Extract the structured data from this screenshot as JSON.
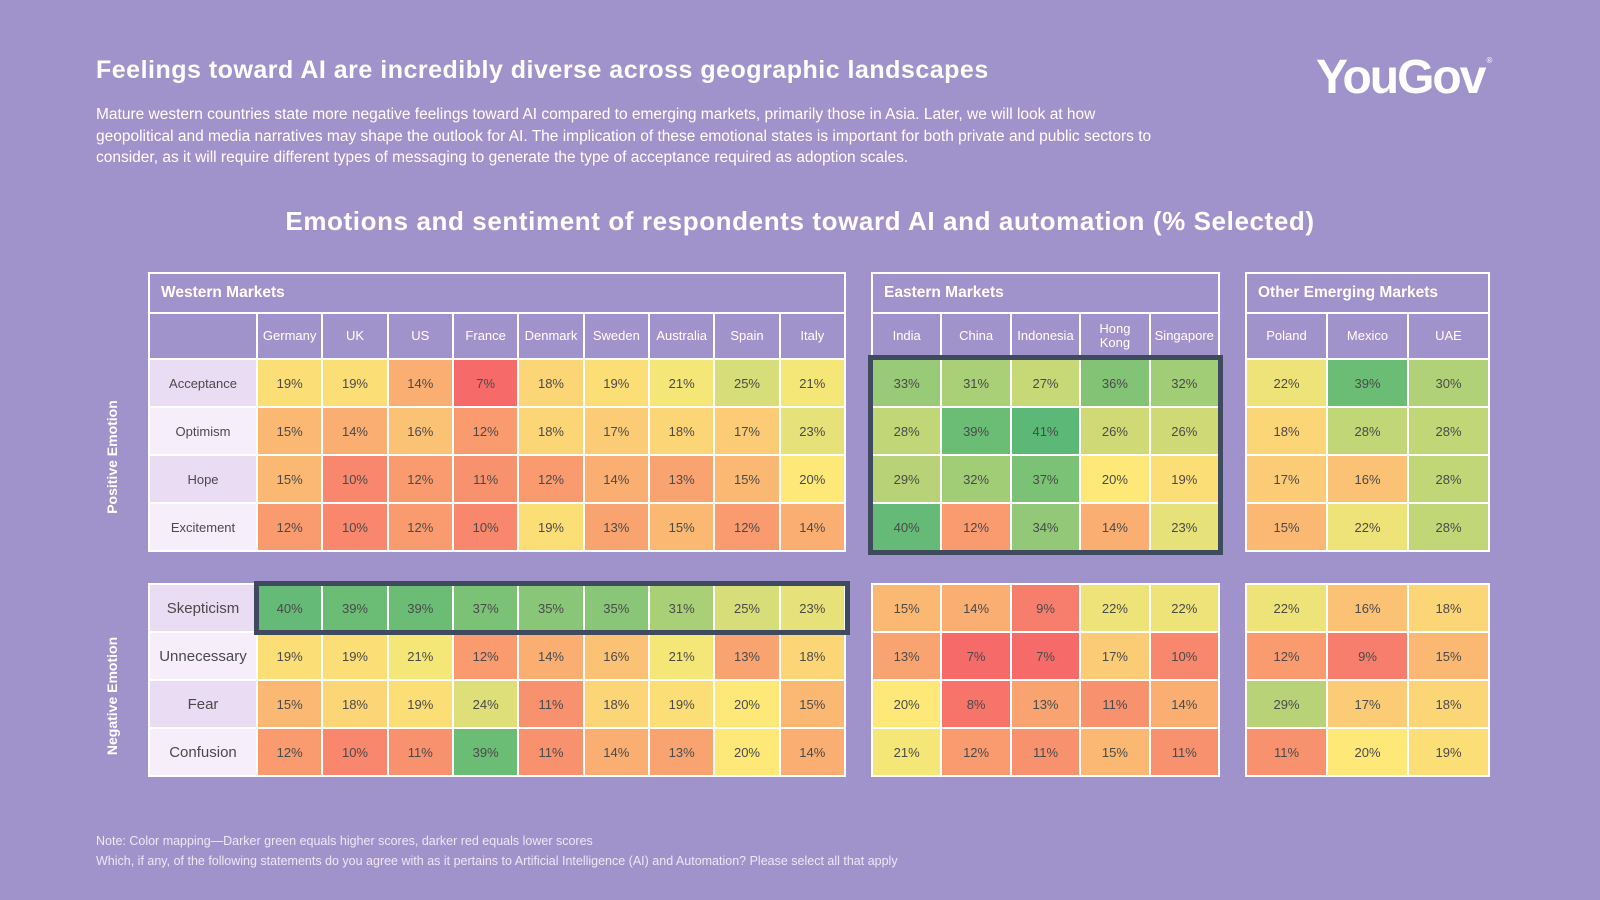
{
  "header": {
    "title": "Feelings toward AI are incredibly diverse across geographic landscapes",
    "subtitle": "Mature western countries state more negative feelings toward AI compared to emerging markets, primarily those in Asia. Later, we will look at how geopolitical and media narratives may shape the outlook for AI. The implication of these emotional states is important for both private and public sectors to consider, as it will require different types of messaging to generate the type of acceptance required as adoption scales.",
    "logo_text": "YouGov",
    "logo_mark": "®"
  },
  "chart_data": {
    "type": "heatmap",
    "title": "Emotions and sentiment of respondents toward AI and automation (% Selected)",
    "unit": "%",
    "groups": [
      {
        "name": "Positive Emotion",
        "rows": [
          "Acceptance",
          "Optimism",
          "Hope",
          "Excitement"
        ]
      },
      {
        "name": "Negative Emotion",
        "rows": [
          "Skepticism",
          "Unnecessary",
          "Fear",
          "Confusion"
        ]
      }
    ],
    "markets": [
      {
        "name": "Western Markets",
        "countries": [
          "Germany",
          "UK",
          "US",
          "France",
          "Denmark",
          "Sweden",
          "Australia",
          "Spain",
          "Italy"
        ],
        "positive": [
          [
            19,
            19,
            14,
            7,
            18,
            19,
            21,
            25,
            21
          ],
          [
            15,
            14,
            16,
            12,
            18,
            17,
            18,
            17,
            23
          ],
          [
            15,
            10,
            12,
            11,
            12,
            14,
            13,
            15,
            20
          ],
          [
            12,
            10,
            12,
            10,
            19,
            13,
            15,
            12,
            14
          ]
        ],
        "negative": [
          [
            40,
            39,
            39,
            37,
            35,
            35,
            31,
            25,
            23
          ],
          [
            19,
            19,
            21,
            12,
            14,
            16,
            21,
            13,
            18
          ],
          [
            15,
            18,
            19,
            24,
            11,
            18,
            19,
            20,
            15
          ],
          [
            12,
            10,
            11,
            39,
            11,
            14,
            13,
            20,
            14
          ]
        ],
        "highlight": "negative-row-0"
      },
      {
        "name": "Eastern Markets",
        "countries": [
          "India",
          "China",
          "Indonesia",
          "Hong Kong",
          "Singapore"
        ],
        "positive": [
          [
            33,
            31,
            27,
            36,
            32
          ],
          [
            28,
            39,
            41,
            26,
            26
          ],
          [
            29,
            32,
            37,
            20,
            19
          ],
          [
            40,
            12,
            34,
            14,
            23
          ]
        ],
        "negative": [
          [
            15,
            14,
            9,
            22,
            22
          ],
          [
            13,
            7,
            7,
            17,
            10
          ],
          [
            20,
            8,
            13,
            11,
            14
          ],
          [
            21,
            12,
            11,
            15,
            11
          ]
        ],
        "highlight": "positive-all"
      },
      {
        "name": "Other Emerging Markets",
        "countries": [
          "Poland",
          "Mexico",
          "UAE"
        ],
        "positive": [
          [
            22,
            39,
            30
          ],
          [
            18,
            28,
            28
          ],
          [
            17,
            16,
            28
          ],
          [
            15,
            22,
            28
          ]
        ],
        "negative": [
          [
            22,
            16,
            18
          ],
          [
            12,
            9,
            15
          ],
          [
            29,
            17,
            18
          ],
          [
            11,
            20,
            19
          ]
        ],
        "highlight": "none"
      }
    ],
    "color_scale": {
      "low": "#f66a6a",
      "mid": "#fde878",
      "high": "#5cb876"
    }
  },
  "footer": {
    "note": "Note: Color mapping—Darker green equals higher scores, darker red equals lower scores",
    "question": "Which, if any, of the following statements do you agree with as it pertains to Artificial Intelligence (AI) and Automation? Please select all that apply"
  }
}
